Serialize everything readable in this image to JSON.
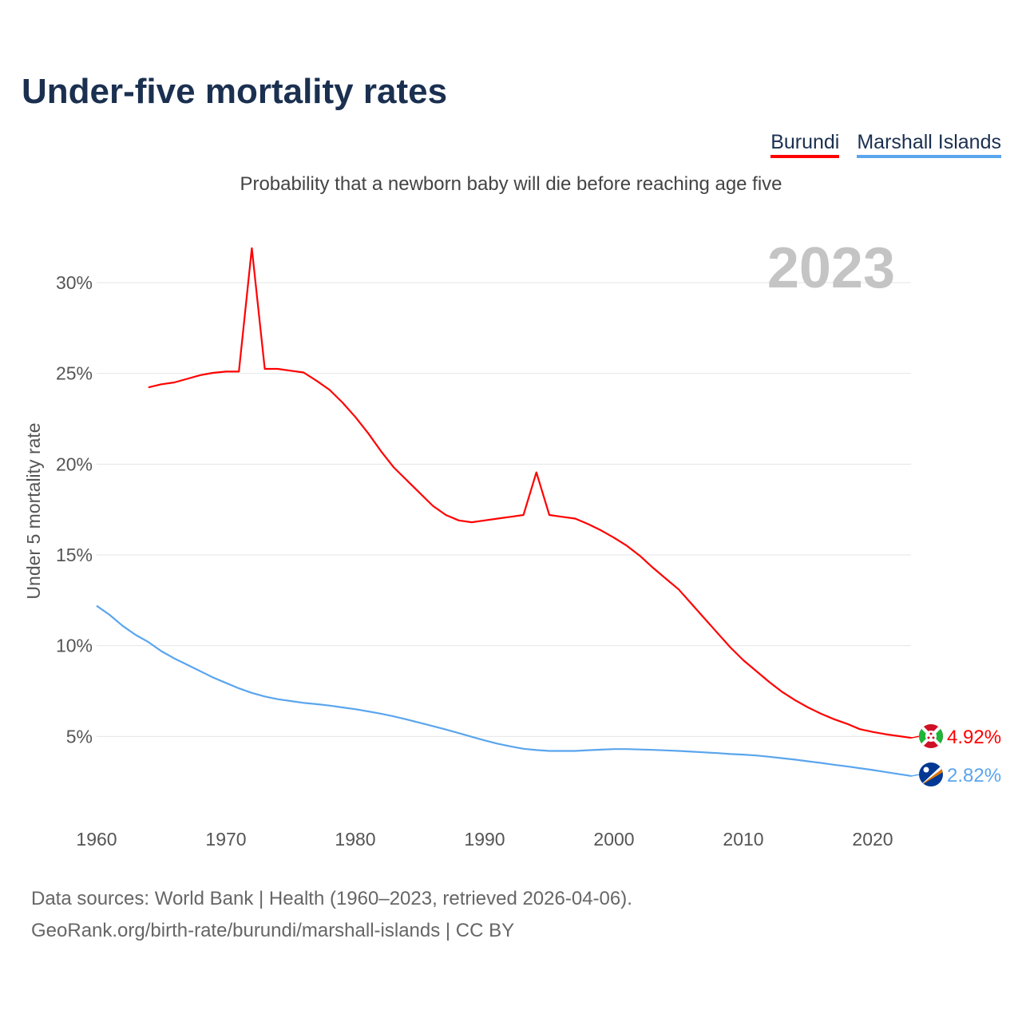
{
  "title": "Under-five mortality rates",
  "subtitle": "Probability that a newborn baby will die before reaching age five",
  "year_badge": "2023",
  "footer": {
    "line1": "Data sources: World Bank | Health (1960–2023, retrieved 2026-04-06).",
    "line2": "GeoRank.org/birth-rate/burundi/marshall-islands | CC BY"
  },
  "chart_data": {
    "type": "line",
    "title": "Under-five mortality rates",
    "xlabel": "",
    "ylabel": "Under 5 mortality rate",
    "xlim": [
      1960,
      2023
    ],
    "ylim": [
      0,
      30
    ],
    "grid": true,
    "legend": "top-right",
    "x_ticks": [
      "1960",
      "1970",
      "1980",
      "1990",
      "2000",
      "2010",
      "2020"
    ],
    "y_ticks": [
      "5%",
      "10%",
      "15%",
      "20%",
      "25%",
      "30%"
    ],
    "y_tick_values": [
      5,
      10,
      15,
      20,
      25,
      30
    ],
    "x_tick_values": [
      1960,
      1970,
      1980,
      1990,
      2000,
      2010,
      2020
    ],
    "series": [
      {
        "name": "Burundi",
        "color": "#ff0000",
        "end_label": "4.92%",
        "flag": "burundi-flag-icon",
        "start_year": 1964,
        "values": [
          24.23,
          24.4,
          24.5,
          24.7,
          24.9,
          25.03,
          25.1,
          25.1,
          31.9,
          25.25,
          25.25,
          25.15,
          25.05,
          24.6,
          24.1,
          23.4,
          22.6,
          21.7,
          20.7,
          19.8,
          19.1,
          18.4,
          17.7,
          17.2,
          16.9,
          16.8,
          16.9,
          17.0,
          17.1,
          17.2,
          19.55,
          17.2,
          17.1,
          17.0,
          16.7,
          16.35,
          15.95,
          15.5,
          14.95,
          14.3,
          13.7,
          13.1,
          12.3,
          11.5,
          10.7,
          9.9,
          9.2,
          8.6,
          8.0,
          7.45,
          7.0,
          6.6,
          6.25,
          5.95,
          5.7,
          5.4,
          5.25,
          5.12,
          5.02,
          4.92
        ]
      },
      {
        "name": "Marshall Islands",
        "color": "#5aa5ee",
        "end_label": "2.82%",
        "flag": "marshall-islands-flag-icon",
        "start_year": 1960,
        "values": [
          12.2,
          11.7,
          11.1,
          10.6,
          10.2,
          9.7,
          9.3,
          8.95,
          8.6,
          8.25,
          7.95,
          7.65,
          7.4,
          7.2,
          7.05,
          6.95,
          6.85,
          6.78,
          6.7,
          6.6,
          6.5,
          6.38,
          6.25,
          6.1,
          5.93,
          5.75,
          5.57,
          5.38,
          5.18,
          4.98,
          4.78,
          4.6,
          4.45,
          4.32,
          4.25,
          4.2,
          4.2,
          4.2,
          4.24,
          4.27,
          4.3,
          4.3,
          4.28,
          4.26,
          4.23,
          4.2,
          4.16,
          4.12,
          4.08,
          4.03,
          4.0,
          3.95,
          3.88,
          3.8,
          3.72,
          3.63,
          3.54,
          3.44,
          3.35,
          3.25,
          3.15,
          3.04,
          2.93,
          2.82
        ]
      }
    ]
  }
}
